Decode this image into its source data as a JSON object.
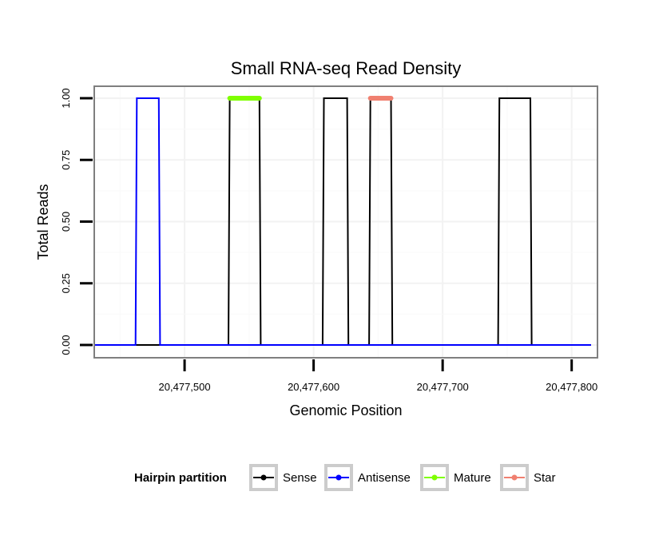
{
  "chart_data": {
    "type": "line",
    "title": "Small RNA-seq Read Density",
    "xlabel": "Genomic Position",
    "ylabel": "Total Reads",
    "xlim": [
      20477430,
      20477820
    ],
    "ylim": [
      0,
      1
    ],
    "x_ticks": [
      20477500,
      20477600,
      20477700,
      20477800
    ],
    "x_tick_labels": [
      "20,477,500",
      "20,477,600",
      "20,477,700",
      "20,477,800"
    ],
    "y_ticks": [
      0,
      0.25,
      0.5,
      0.75,
      1
    ],
    "y_tick_labels": [
      "0.00",
      "0.25",
      "0.50",
      "0.75",
      "1.00"
    ],
    "grid": true,
    "legend": {
      "title": "Hairpin partition",
      "placement": "bottom",
      "entries": [
        {
          "label": "Sense",
          "color": "#000000"
        },
        {
          "label": "Antisense",
          "color": "#0000ff"
        },
        {
          "label": "Mature",
          "color": "#7fff00"
        },
        {
          "label": "Star",
          "color": "#f08070"
        }
      ]
    },
    "series": [
      {
        "name": "Sense",
        "color": "#000000",
        "x": [
          20477430,
          20477534,
          20477535,
          20477558,
          20477559,
          20477607,
          20477608,
          20477626,
          20477627,
          20477643,
          20477644,
          20477660,
          20477661,
          20477743,
          20477744,
          20477768,
          20477769,
          20477815
        ],
        "y": [
          0,
          0,
          1,
          1,
          0,
          0,
          1,
          1,
          0,
          0,
          1,
          1,
          0,
          0,
          1,
          1,
          0,
          0
        ]
      },
      {
        "name": "Antisense",
        "color": "#0000ff",
        "x": [
          20477430,
          20477462,
          20477463,
          20477480,
          20477481,
          20477815
        ],
        "y": [
          0,
          0,
          1,
          1,
          0,
          0
        ]
      },
      {
        "name": "Mature",
        "color": "#7fff00",
        "x": [
          20477535,
          20477558
        ],
        "y": [
          1,
          1
        ]
      },
      {
        "name": "Star",
        "color": "#f08070",
        "x": [
          20477644,
          20477660
        ],
        "y": [
          1,
          1
        ]
      }
    ]
  }
}
